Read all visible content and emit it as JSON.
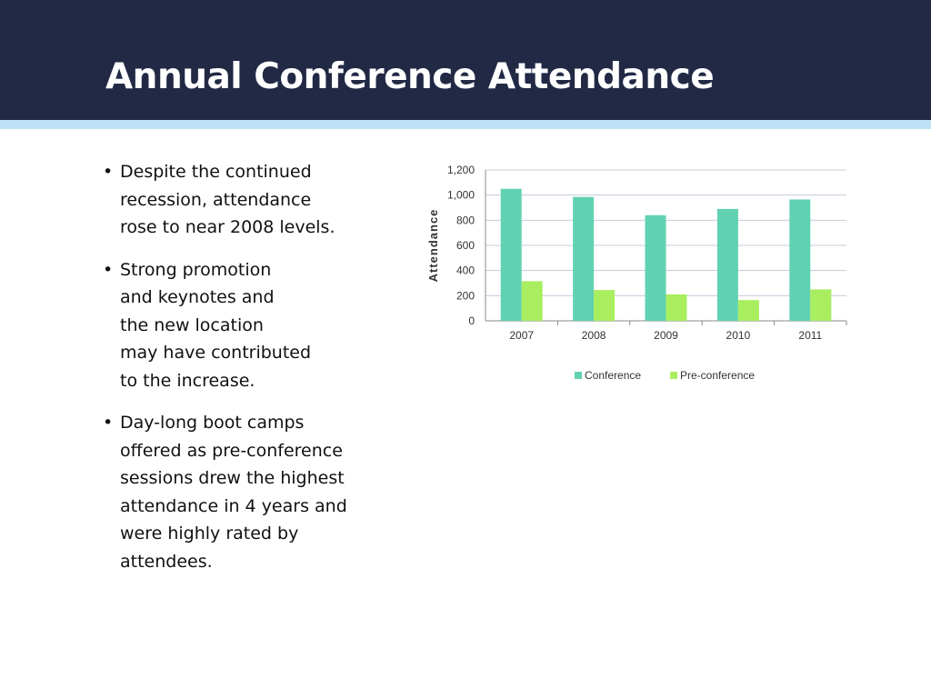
{
  "slide": {
    "title": "Annual Conference Attendance",
    "bullets": [
      "Despite the continued\nrecession, attendance\nrose to near 2008 levels.",
      "Strong promotion\nand keynotes and\nthe new location\nmay have contributed\nto the increase.",
      "Day-long boot camps\noffered as pre-conference\nsessions drew the highest\nattendance in 4 years and\nwere highly rated by\nattendees."
    ],
    "bullet_symbol": "•"
  },
  "chart_data": {
    "type": "bar",
    "title": "",
    "xlabel": "",
    "ylabel": "Attendance",
    "categories": [
      "2007",
      "2008",
      "2009",
      "2010",
      "2011"
    ],
    "series": [
      {
        "name": "Conference",
        "color": "#60d2b2",
        "values": [
          1050,
          985,
          840,
          890,
          965
        ]
      },
      {
        "name": "Pre-conference",
        "color": "#a8ee5e",
        "values": [
          315,
          245,
          210,
          165,
          250
        ]
      }
    ],
    "ylim": [
      0,
      1200
    ],
    "yticks": [
      0,
      200,
      400,
      600,
      800,
      1000,
      1200
    ],
    "ytick_labels": [
      "0",
      "200",
      "400",
      "600",
      "800",
      "1,000",
      "1,200"
    ],
    "grid": true,
    "legend_position": "bottom"
  }
}
